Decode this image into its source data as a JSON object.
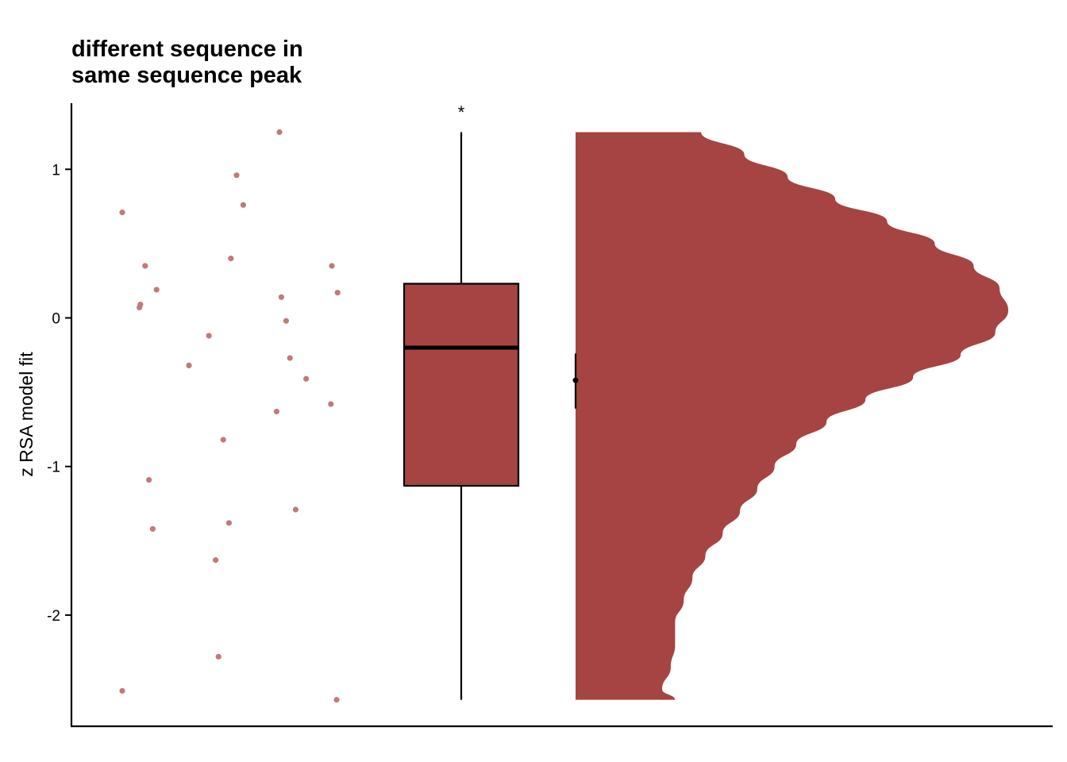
{
  "chart_data": {
    "type": "raincloud",
    "title_lines": [
      "different sequence in",
      "same sequence peak"
    ],
    "ylabel": "z RSA model fit",
    "xlabel": "",
    "ylim": [
      -2.75,
      1.45
    ],
    "yticks": [
      1,
      0,
      -1,
      -2
    ],
    "ytick_labels": [
      "1",
      "0",
      "-1",
      "-2"
    ],
    "significance_marker": "*",
    "fill_color": "#a54442",
    "point_color": "#c07b79",
    "points": [
      {
        "jitter": 0.045,
        "y": 0.71
      },
      {
        "jitter": 0.069,
        "y": 0.35
      },
      {
        "jitter": 0.081,
        "y": 0.19
      },
      {
        "jitter": 0.064,
        "y": 0.09
      },
      {
        "jitter": 0.063,
        "y": 0.07
      },
      {
        "jitter": 0.115,
        "y": -0.32
      },
      {
        "jitter": 0.136,
        "y": -0.12
      },
      {
        "jitter": 0.073,
        "y": -1.09
      },
      {
        "jitter": 0.077,
        "y": -1.42
      },
      {
        "jitter": 0.045,
        "y": -2.51
      },
      {
        "jitter": 0.151,
        "y": -0.82
      },
      {
        "jitter": 0.143,
        "y": -1.63
      },
      {
        "jitter": 0.146,
        "y": -2.28
      },
      {
        "jitter": 0.159,
        "y": 0.4
      },
      {
        "jitter": 0.165,
        "y": 0.96
      },
      {
        "jitter": 0.172,
        "y": 0.76
      },
      {
        "jitter": 0.157,
        "y": -1.38
      },
      {
        "jitter": 0.21,
        "y": 1.25
      },
      {
        "jitter": 0.212,
        "y": 0.14
      },
      {
        "jitter": 0.217,
        "y": -0.02
      },
      {
        "jitter": 0.221,
        "y": -0.27
      },
      {
        "jitter": 0.207,
        "y": -0.63
      },
      {
        "jitter": 0.227,
        "y": -1.29
      },
      {
        "jitter": 0.238,
        "y": -0.41
      },
      {
        "jitter": 0.265,
        "y": 0.35
      },
      {
        "jitter": 0.271,
        "y": 0.17
      },
      {
        "jitter": 0.264,
        "y": -0.58
      },
      {
        "jitter": 0.27,
        "y": -2.57
      }
    ],
    "box": {
      "min": -2.57,
      "q1": -1.13,
      "median": -0.2,
      "q3": 0.23,
      "max": 1.25
    },
    "mean": {
      "value": -0.42,
      "se_low": -0.61,
      "se_high": -0.24
    },
    "density": {
      "y": [
        1.25,
        1.1,
        0.95,
        0.8,
        0.65,
        0.5,
        0.35,
        0.2,
        0.05,
        -0.1,
        -0.25,
        -0.4,
        -0.55,
        -0.7,
        -0.85,
        -1.0,
        -1.15,
        -1.3,
        -1.45,
        -1.6,
        -1.75,
        -1.9,
        -2.05,
        -2.2,
        -2.35,
        -2.5,
        -2.57
      ],
      "width": [
        0.29,
        0.39,
        0.49,
        0.6,
        0.72,
        0.83,
        0.92,
        0.98,
        1.0,
        0.97,
        0.89,
        0.78,
        0.67,
        0.58,
        0.51,
        0.46,
        0.42,
        0.38,
        0.34,
        0.3,
        0.27,
        0.25,
        0.23,
        0.23,
        0.22,
        0.2,
        0.23
      ]
    }
  }
}
